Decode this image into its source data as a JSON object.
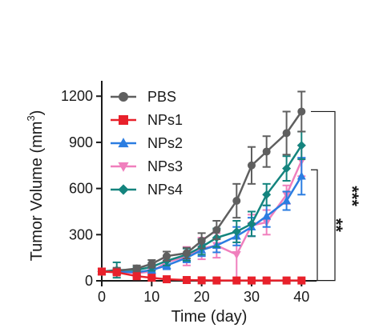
{
  "chart_data": {
    "type": "line",
    "xlabel": "Time (day)",
    "ylabel": "Tumor Volume (mm",
    "ylabel_sup": "3",
    "ylabel_close": ")",
    "xlim": [
      0,
      43
    ],
    "ylim": [
      0,
      1300
    ],
    "xticks": [
      0,
      10,
      20,
      30,
      40
    ],
    "yticks": [
      0,
      300,
      600,
      900,
      1200
    ],
    "legend_position": "top-left",
    "series": [
      {
        "name": "PBS",
        "color": "#5f5f5f",
        "marker": "circle",
        "x": [
          0,
          3,
          7,
          10,
          13,
          17,
          20,
          23,
          27,
          30,
          33,
          37,
          40
        ],
        "y": [
          60,
          65,
          80,
          110,
          160,
          180,
          260,
          330,
          520,
          750,
          840,
          960,
          1100
        ],
        "err": [
          15,
          20,
          20,
          25,
          30,
          35,
          50,
          60,
          110,
          120,
          100,
          140,
          130
        ]
      },
      {
        "name": "NPs1",
        "color": "#e8212b",
        "marker": "square",
        "x": [
          0,
          3,
          7,
          10,
          13,
          17,
          20,
          23,
          27,
          30,
          33,
          37,
          40
        ],
        "y": [
          60,
          55,
          30,
          20,
          10,
          5,
          3,
          2,
          2,
          2,
          2,
          2,
          2
        ],
        "err": [
          10,
          10,
          8,
          6,
          4,
          3,
          2,
          2,
          2,
          2,
          2,
          2,
          2
        ]
      },
      {
        "name": "NPs2",
        "color": "#2b7de1",
        "marker": "triangle",
        "x": [
          0,
          3,
          7,
          10,
          13,
          17,
          20,
          23,
          27,
          30,
          33,
          37,
          40
        ],
        "y": [
          60,
          60,
          55,
          70,
          100,
          150,
          200,
          230,
          290,
          350,
          420,
          520,
          680
        ],
        "err": [
          15,
          15,
          15,
          20,
          25,
          30,
          40,
          45,
          60,
          60,
          70,
          60,
          120
        ]
      },
      {
        "name": "NPs3",
        "color": "#f07fbd",
        "marker": "triangle-down",
        "x": [
          0,
          3,
          7,
          10,
          13,
          17,
          20,
          23,
          27,
          30,
          33,
          37,
          40
        ],
        "y": [
          60,
          60,
          50,
          60,
          120,
          160,
          210,
          230,
          170,
          360,
          380,
          560,
          780
        ],
        "err": [
          15,
          15,
          15,
          20,
          40,
          60,
          70,
          80,
          150,
          70,
          80,
          60,
          100
        ]
      },
      {
        "name": "NPs4",
        "color": "#14847e",
        "marker": "diamond",
        "x": [
          0,
          3,
          7,
          10,
          13,
          17,
          20,
          23,
          27,
          30,
          33,
          37,
          40
        ],
        "y": [
          60,
          70,
          70,
          90,
          130,
          170,
          220,
          280,
          320,
          370,
          560,
          730,
          880
        ],
        "err": [
          15,
          50,
          20,
          25,
          30,
          40,
          50,
          60,
          70,
          80,
          70,
          80,
          90
        ]
      }
    ],
    "significance": [
      {
        "label": "***",
        "from": "PBS",
        "to": "NPs1"
      },
      {
        "label": "**",
        "from": "NPs2",
        "to": "NPs1"
      }
    ]
  }
}
